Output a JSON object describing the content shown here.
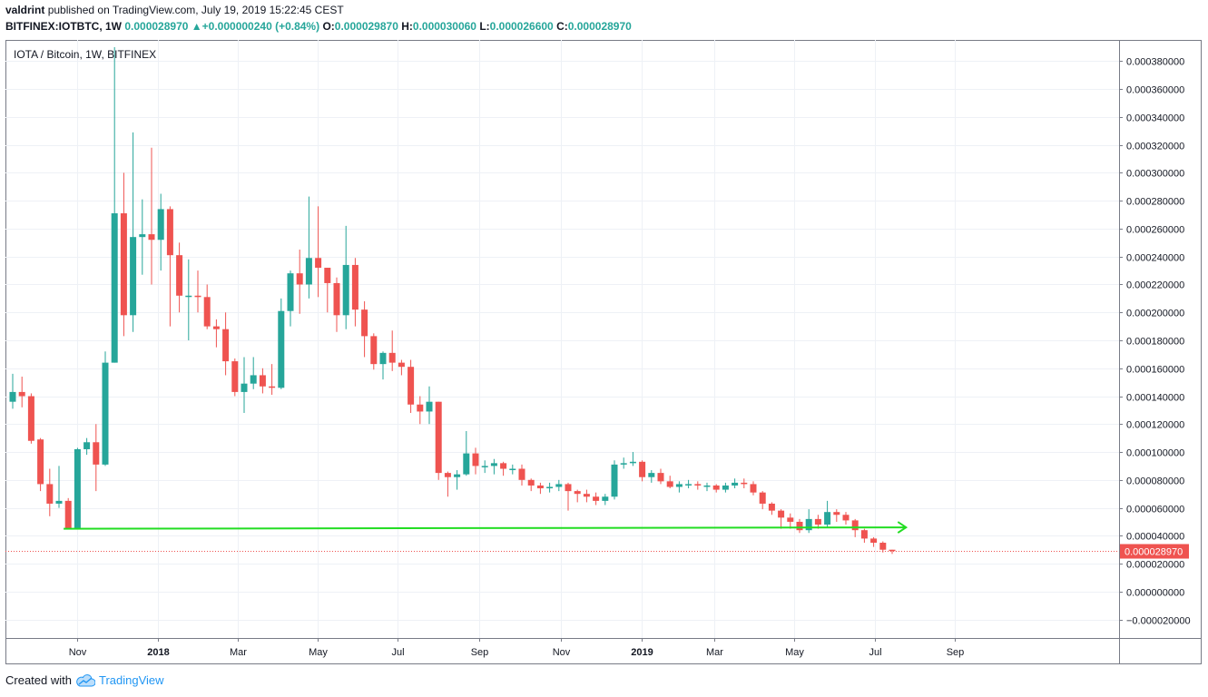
{
  "header": {
    "author": "valdrint",
    "published_text": "published on TradingView.com, July 19, 2019 15:22:45 CEST",
    "symbol_line": {
      "symbol": "BITFINEX:IOTBTC, 1W",
      "last": "0.000028970",
      "arrow": "▲",
      "change": "+0.000000240 (+0.84%)",
      "o_label": "O:",
      "o": "0.000029870",
      "h_label": "H:",
      "h": "0.000030060",
      "l_label": "L:",
      "l": "0.000026600",
      "c_label": "C:",
      "c": "0.000028970"
    }
  },
  "chart_title": "IOTA / Bitcoin, 1W, BITFINEX",
  "footer": {
    "created_with": "Created with",
    "brand": "TradingView"
  },
  "colors": {
    "up": "#26a69a",
    "down": "#ef5350",
    "support": "#22dd22",
    "price_line": "#ef5350",
    "grid": "#eef1f6"
  },
  "icons": {
    "footer_logo": "tradingview-cloud-icon"
  },
  "chart_data": {
    "type": "candlestick",
    "interval": "1W",
    "y_range": [
      -3e-05,
      0.00039
    ],
    "y_ticks": [
      {
        "value": 0.00038,
        "label": "0.000380000"
      },
      {
        "value": 0.00036,
        "label": "0.000360000"
      },
      {
        "value": 0.00034,
        "label": "0.000340000"
      },
      {
        "value": 0.00032,
        "label": "0.000320000"
      },
      {
        "value": 0.0003,
        "label": "0.000300000"
      },
      {
        "value": 0.00028,
        "label": "0.000280000"
      },
      {
        "value": 0.00026,
        "label": "0.000260000"
      },
      {
        "value": 0.00024,
        "label": "0.000240000"
      },
      {
        "value": 0.00022,
        "label": "0.000220000"
      },
      {
        "value": 0.0002,
        "label": "0.000200000"
      },
      {
        "value": 0.00018,
        "label": "0.000180000"
      },
      {
        "value": 0.00016,
        "label": "0.000160000"
      },
      {
        "value": 0.00014,
        "label": "0.000140000"
      },
      {
        "value": 0.00012,
        "label": "0.000120000"
      },
      {
        "value": 0.0001,
        "label": "0.000100000"
      },
      {
        "value": 8e-05,
        "label": "0.000080000"
      },
      {
        "value": 6e-05,
        "label": "0.000060000"
      },
      {
        "value": 4e-05,
        "label": "0.000040000"
      },
      {
        "value": 2e-05,
        "label": "0.000020000"
      },
      {
        "value": 0.0,
        "label": "0.000000000"
      },
      {
        "value": -2e-05,
        "label": "−0.000020000"
      }
    ],
    "x_ticks": [
      {
        "week": 7.0,
        "label": "Nov",
        "bold": false
      },
      {
        "week": 15.7,
        "label": "2018",
        "bold": true
      },
      {
        "week": 24.3,
        "label": "Mar",
        "bold": false
      },
      {
        "week": 32.9,
        "label": "May",
        "bold": false
      },
      {
        "week": 41.6,
        "label": "Jul",
        "bold": false
      },
      {
        "week": 50.4,
        "label": "Sep",
        "bold": false
      },
      {
        "week": 59.2,
        "label": "Nov",
        "bold": false
      },
      {
        "week": 67.9,
        "label": "2019",
        "bold": true
      },
      {
        "week": 75.8,
        "label": "Mar",
        "bold": false
      },
      {
        "week": 84.4,
        "label": "May",
        "bold": false
      },
      {
        "week": 93.1,
        "label": "Jul",
        "bold": false
      },
      {
        "week": 101.8,
        "label": "Sep",
        "bold": false
      }
    ],
    "candles": [
      [
        0.000136,
        0.000143,
        0.000131,
        0.000156
      ],
      [
        0.000143,
        0.00014,
        0.000132,
        0.000154
      ],
      [
        0.00014,
        0.000108,
        0.000106,
        0.000142
      ],
      [
        0.000109,
        7.7e-05,
        7.2e-05,
        0.00011
      ],
      [
        7.7e-05,
        6.3e-05,
        5.4e-05,
        8.8e-05
      ],
      [
        6.3e-05,
        6.5e-05,
        6e-05,
        9e-05
      ],
      [
        6.5e-05,
        4.5e-05,
        4.5e-05,
        6.7e-05
      ],
      [
        4.5e-05,
        0.000102,
        4.5e-05,
        0.000103
      ],
      [
        0.000102,
        0.000107,
        9.8e-05,
        0.00011
      ],
      [
        0.000107,
        9.1e-05,
        7.2e-05,
        0.00012
      ],
      [
        9.1e-05,
        0.000164,
        9e-05,
        0.000172
      ],
      [
        0.000164,
        0.000271,
        0.000164,
        0.00039
      ],
      [
        0.000271,
        0.000198,
        0.000183,
        0.0003
      ],
      [
        0.000198,
        0.000254,
        0.000186,
        0.000329
      ],
      [
        0.000254,
        0.000256,
        0.000227,
        0.000281
      ],
      [
        0.000256,
        0.000252,
        0.00022,
        0.000318
      ],
      [
        0.000252,
        0.000274,
        0.00023,
        0.000285
      ],
      [
        0.000274,
        0.000241,
        0.00019,
        0.000276
      ],
      [
        0.000241,
        0.000212,
        0.0002,
        0.00025
      ],
      [
        0.000212,
        0.000212,
        0.00018,
        0.000238
      ],
      [
        0.000212,
        0.000211,
        0.0002,
        0.00023
      ],
      [
        0.000211,
        0.00019,
        0.000188,
        0.00022
      ],
      [
        0.00019,
        0.000188,
        0.000175,
        0.000195
      ],
      [
        0.000188,
        0.000165,
        0.000155,
        0.0002
      ],
      [
        0.000165,
        0.000143,
        0.00014,
        0.000167
      ],
      [
        0.000143,
        0.000149,
        0.000128,
        0.000168
      ],
      [
        0.000149,
        0.000155,
        0.000145,
        0.000168
      ],
      [
        0.000155,
        0.000147,
        0.000142,
        0.00016
      ],
      [
        0.000147,
        0.000146,
        0.000141,
        0.000163
      ],
      [
        0.000146,
        0.000201,
        0.000145,
        0.00021
      ],
      [
        0.000201,
        0.000228,
        0.00019,
        0.00023
      ],
      [
        0.000228,
        0.00022,
        0.000199,
        0.000245
      ],
      [
        0.00022,
        0.000239,
        0.00021,
        0.000283
      ],
      [
        0.000239,
        0.000232,
        0.000211,
        0.000276
      ],
      [
        0.000232,
        0.000221,
        0.0002,
        0.000232
      ],
      [
        0.000221,
        0.000198,
        0.000186,
        0.000225
      ],
      [
        0.000198,
        0.000234,
        0.000188,
        0.000262
      ],
      [
        0.000234,
        0.000202,
        0.00019,
        0.000239
      ],
      [
        0.000202,
        0.000183,
        0.000168,
        0.000208
      ],
      [
        0.000183,
        0.000163,
        0.000159,
        0.000185
      ],
      [
        0.000163,
        0.000171,
        0.000152,
        0.000172
      ],
      [
        0.000171,
        0.000164,
        0.000158,
        0.000187
      ],
      [
        0.000164,
        0.000161,
        0.000155,
        0.000166
      ],
      [
        0.000161,
        0.000134,
        0.000128,
        0.000166
      ],
      [
        0.000134,
        0.000129,
        0.00012,
        0.00014
      ],
      [
        0.000129,
        0.000136,
        0.00012,
        0.000147
      ],
      [
        0.000136,
        8.5e-05,
        8e-05,
        0.000136
      ],
      [
        8.5e-05,
        8.2e-05,
        6.8e-05,
        8.6e-05
      ],
      [
        8.2e-05,
        8.4e-05,
        7.3e-05,
        8.7e-05
      ],
      [
        8.4e-05,
        9.9e-05,
        8.3e-05,
        0.000115
      ],
      [
        9.9e-05,
        9e-05,
        8.4e-05,
        0.000103
      ],
      [
        9e-05,
        9e-05,
        8.5e-05,
        9.4e-05
      ],
      [
        9e-05,
        9.2e-05,
        8.4e-05,
        9.5e-05
      ],
      [
        9.2e-05,
        8.8e-05,
        8.3e-05,
        9.3e-05
      ],
      [
        8.8e-05,
        8.8e-05,
        8.4e-05,
        9.1e-05
      ],
      [
        8.8e-05,
        8e-05,
        7.6e-05,
        9.1e-05
      ],
      [
        8e-05,
        7.6e-05,
        7.2e-05,
        8.1e-05
      ],
      [
        7.6e-05,
        7.4e-05,
        7e-05,
        7.8e-05
      ],
      [
        7.4e-05,
        7.5e-05,
        7.1e-05,
        7.8e-05
      ],
      [
        7.5e-05,
        7.7e-05,
        7.2e-05,
        8e-05
      ],
      [
        7.7e-05,
        7.2e-05,
        5.8e-05,
        7.8e-05
      ],
      [
        7.2e-05,
        7e-05,
        6.4e-05,
        7.3e-05
      ],
      [
        7e-05,
        6.8e-05,
        6.4e-05,
        7.3e-05
      ],
      [
        6.8e-05,
        6.5e-05,
        6.2e-05,
        7.1e-05
      ],
      [
        6.5e-05,
        6.8e-05,
        6.2e-05,
        7e-05
      ],
      [
        6.8e-05,
        9.1e-05,
        6.6e-05,
        9.4e-05
      ],
      [
        9.1e-05,
        9.2e-05,
        8.8e-05,
        9.6e-05
      ],
      [
        9.2e-05,
        9.3e-05,
        9e-05,
        0.0001
      ],
      [
        9.3e-05,
        8.2e-05,
        7.9e-05,
        9.4e-05
      ],
      [
        8.2e-05,
        8.5e-05,
        7.8e-05,
        8.7e-05
      ],
      [
        8.5e-05,
        7.9e-05,
        7.7e-05,
        8.8e-05
      ],
      [
        7.9e-05,
        7.5e-05,
        7.4e-05,
        8.3e-05
      ],
      [
        7.5e-05,
        7.7e-05,
        7.1e-05,
        7.9e-05
      ],
      [
        7.7e-05,
        7.7e-05,
        7.4e-05,
        8e-05
      ],
      [
        7.7e-05,
        7.6e-05,
        7.3e-05,
        7.9e-05
      ],
      [
        7.6e-05,
        7.6e-05,
        7.2e-05,
        7.8e-05
      ],
      [
        7.6e-05,
        7.3e-05,
        7.1e-05,
        7.7e-05
      ],
      [
        7.3e-05,
        7.6e-05,
        7.1e-05,
        7.8e-05
      ],
      [
        7.6e-05,
        7.8e-05,
        7.4e-05,
        8.1e-05
      ],
      [
        7.8e-05,
        7.7e-05,
        7.4e-05,
        8.1e-05
      ],
      [
        7.7e-05,
        7.1e-05,
        6.9e-05,
        7.9e-05
      ],
      [
        7.1e-05,
        6.3e-05,
        5.9e-05,
        7.2e-05
      ],
      [
        6.3e-05,
        5.8e-05,
        5.5e-05,
        6.4e-05
      ],
      [
        5.8e-05,
        5.3e-05,
        4.5e-05,
        5.9e-05
      ],
      [
        5.3e-05,
        5e-05,
        4.5e-05,
        5.6e-05
      ],
      [
        5e-05,
        4.4e-05,
        4.2e-05,
        5.2e-05
      ],
      [
        4.4e-05,
        5.2e-05,
        4.2e-05,
        5.9e-05
      ],
      [
        5.2e-05,
        4.8e-05,
        4.5e-05,
        5.5e-05
      ],
      [
        4.8e-05,
        5.7e-05,
        4.6e-05,
        6.5e-05
      ],
      [
        5.7e-05,
        5.5e-05,
        5e-05,
        5.9e-05
      ],
      [
        5.5e-05,
        5.1e-05,
        4.8e-05,
        5.7e-05
      ],
      [
        5.1e-05,
        4.4e-05,
        3.9e-05,
        5.2e-05
      ],
      [
        4.4e-05,
        3.8e-05,
        3.5e-05,
        4.5e-05
      ],
      [
        3.8e-05,
        3.5e-05,
        3.2e-05,
        3.9e-05
      ],
      [
        3.5e-05,
        3e-05,
        2.8e-05,
        3.6e-05
      ],
      [
        3e-05,
        2.9e-05,
        2.7e-05,
        3e-05
      ]
    ],
    "support_line": {
      "from": {
        "week": 5.5,
        "value": 4.5e-05
      },
      "to": {
        "week": 96.5,
        "value": 4.6e-05
      }
    },
    "last_price": {
      "value": 2.897e-05,
      "label": "0.000028970"
    }
  }
}
